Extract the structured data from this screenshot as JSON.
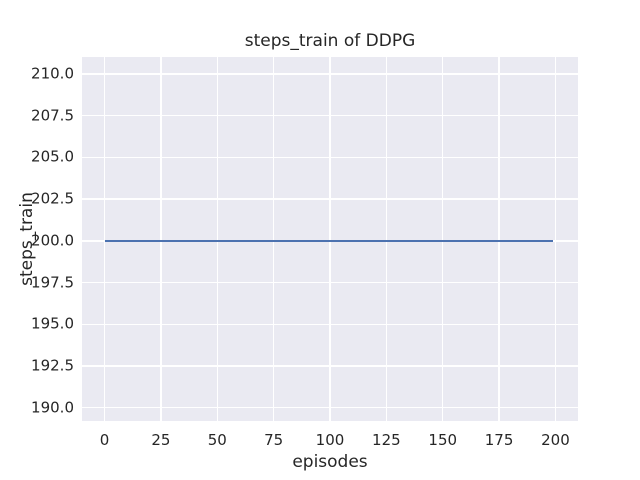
{
  "figure": {
    "background": "#ffffff",
    "axes_background": "#eaeaf2",
    "grid_color": "#ffffff",
    "text_color": "#262626"
  },
  "chart_data": {
    "type": "line",
    "title": "steps_train of DDPG",
    "xlabel": "episodes",
    "ylabel": "steps_train",
    "xlim": [
      -10,
      210
    ],
    "ylim": [
      189.2,
      211.02
    ],
    "x_ticks": [
      0,
      25,
      50,
      75,
      100,
      125,
      150,
      175,
      200
    ],
    "x_tick_labels": [
      "0",
      "25",
      "50",
      "75",
      "100",
      "125",
      "150",
      "175",
      "200"
    ],
    "y_ticks": [
      190.0,
      192.5,
      195.0,
      197.5,
      200.0,
      202.5,
      205.0,
      207.5,
      210.0
    ],
    "y_tick_labels": [
      "190.0",
      "192.5",
      "195.0",
      "197.5",
      "200.0",
      "202.5",
      "205.0",
      "207.5",
      "210.0"
    ],
    "grid": true,
    "legend_position": "none",
    "series": [
      {
        "name": "steps_train",
        "color": "#4c72b0",
        "constant_value": 200,
        "x": [
          0,
          199
        ],
        "y": [
          200,
          200
        ],
        "points": [
          [
            0,
            200
          ],
          [
            199,
            200
          ]
        ]
      }
    ]
  }
}
